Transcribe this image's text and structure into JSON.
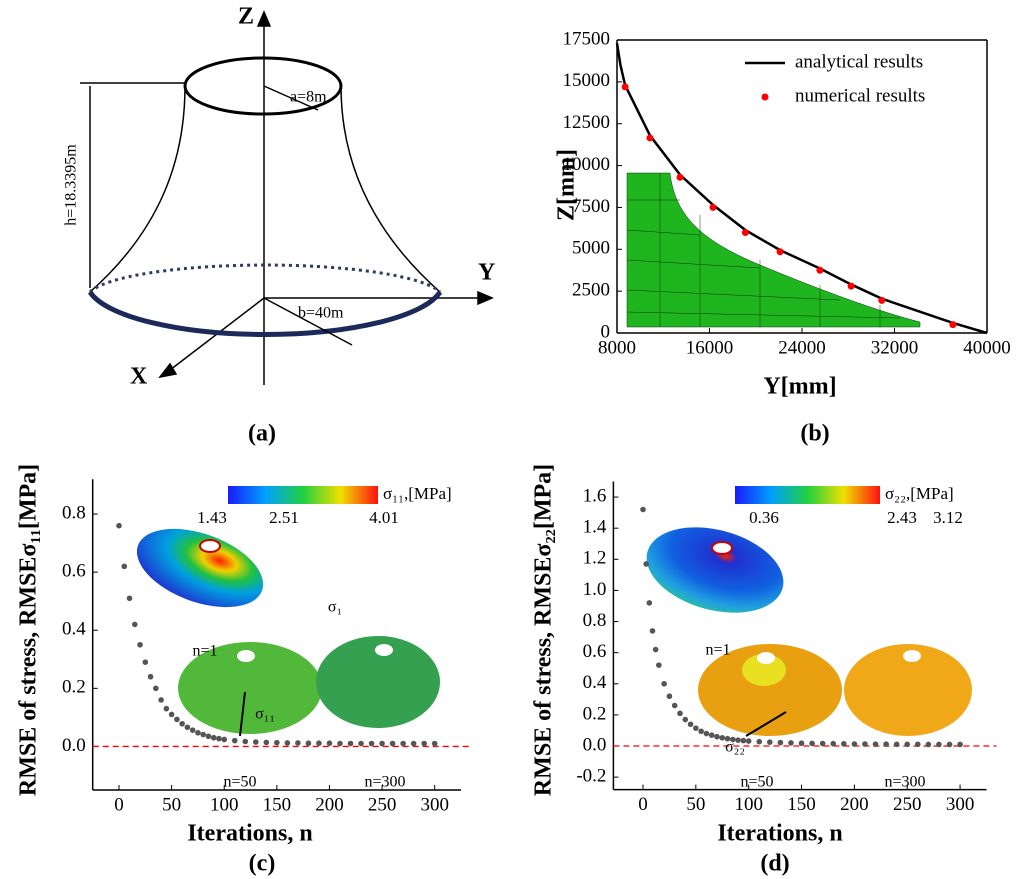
{
  "diagram": {
    "axis_labels": [
      "Z",
      "Y",
      "X"
    ],
    "dimensions": [
      "a=8m",
      "h=18.3395m",
      "b=40m"
    ],
    "panel_label": "(a)"
  },
  "chart_data": [
    {
      "type": "line",
      "panel_label": "(b)",
      "xlabel": "Y[mm]",
      "ylabel": "Z[mm]",
      "xlim": [
        8000,
        40000
      ],
      "xticks": [
        8000,
        16000,
        24000,
        32000,
        40000
      ],
      "ylim": [
        0,
        17500
      ],
      "yticks": [
        0,
        2500,
        5000,
        7500,
        10000,
        12500,
        15000,
        17500
      ],
      "frame": true,
      "legend": "upper right",
      "series": [
        {
          "name": "analytical results",
          "color": "#000000",
          "mode": "line",
          "x": [
            8000,
            8300,
            8700,
            10850,
            13450,
            16300,
            19100,
            22100,
            25550,
            28250,
            30900,
            37050,
            40000
          ],
          "values": [
            17300,
            16000,
            14800,
            11800,
            9450,
            7650,
            6150,
            4950,
            3850,
            2900,
            2050,
            600,
            0
          ]
        },
        {
          "name": "numerical results",
          "color": "#ff0000",
          "mode": "markers",
          "x": [
            8700,
            10850,
            13450,
            16300,
            19100,
            22100,
            25550,
            28250,
            30900,
            37050
          ],
          "values": [
            14700,
            11650,
            9300,
            7500,
            6000,
            4850,
            3750,
            2800,
            1950,
            500
          ]
        }
      ]
    },
    {
      "type": "scatter",
      "panel_label": "(c)",
      "xlabel": "Iterations, n",
      "ylabel": "RMSE of stress, RMSEσ₁₁[MPa]",
      "xlim": [
        -25,
        325
      ],
      "xticks": [
        0,
        50,
        100,
        150,
        200,
        250,
        300
      ],
      "ylim": [
        -0.15,
        0.92
      ],
      "yticks": [
        {
          "value": 0,
          "label": "0.0"
        },
        0.2,
        0.4,
        0.6,
        0.8
      ],
      "color": "#555555",
      "refline": {
        "value": 0,
        "color": "#ff0000"
      },
      "colorbar": {
        "label": "σ₁₁,[MPa]",
        "lim": [
          1.25,
          4.25
        ],
        "ticks": [
          1.43,
          2.51,
          4.01
        ]
      },
      "annotations": [
        "n=1",
        "n=50",
        "n=300",
        "σ₁",
        "σ₁₁"
      ],
      "x": [
        0,
        5,
        10,
        15,
        20,
        25,
        30,
        35,
        40,
        45,
        50,
        55,
        60,
        65,
        70,
        75,
        80,
        85,
        90,
        95,
        100,
        110,
        120,
        130,
        140,
        150,
        160,
        170,
        180,
        190,
        200,
        210,
        220,
        230,
        240,
        250,
        260,
        270,
        280,
        290,
        300
      ],
      "values": [
        0.76,
        0.62,
        0.51,
        0.42,
        0.35,
        0.29,
        0.24,
        0.2,
        0.16,
        0.13,
        0.11,
        0.093,
        0.078,
        0.066,
        0.056,
        0.047,
        0.041,
        0.035,
        0.03,
        0.027,
        0.024,
        0.02,
        0.017,
        0.015,
        0.014,
        0.013,
        0.012,
        0.012,
        0.011,
        0.011,
        0.011,
        0.01,
        0.01,
        0.01,
        0.01,
        0.01,
        0.01,
        0.01,
        0.01,
        0.01,
        0.01
      ]
    },
    {
      "type": "scatter",
      "panel_label": "(d)",
      "xlabel": "Iterations, n",
      "ylabel": "RMSE of stress, RMSEσ₂₂[MPa]",
      "xlim": [
        -28,
        325
      ],
      "xticks": [
        0,
        50,
        100,
        150,
        200,
        250,
        300
      ],
      "ylim": [
        -0.28,
        1.7
      ],
      "yticks": [
        -0.2,
        {
          "value": 0,
          "label": "0.0"
        },
        0.2,
        0.4,
        0.6,
        0.8,
        {
          "value": 1,
          "label": "1.0"
        },
        1.2,
        1.4,
        1.6
      ],
      "color": "#555555",
      "refline": {
        "value": 0,
        "color": "#ff0000"
      },
      "colorbar": {
        "label": "σ₂₂,[MPa]",
        "lim": [
          0,
          3.3
        ],
        "ticks": [
          0.36,
          2.43,
          3.12
        ]
      },
      "annotations": [
        "n=1",
        "n=50",
        "n=300",
        "σ₂₂"
      ],
      "x": [
        0,
        3,
        6,
        9,
        12,
        15,
        20,
        25,
        30,
        35,
        40,
        45,
        50,
        55,
        60,
        65,
        70,
        75,
        80,
        85,
        90,
        95,
        100,
        110,
        120,
        130,
        140,
        150,
        160,
        170,
        180,
        190,
        200,
        210,
        220,
        230,
        240,
        250,
        260,
        270,
        280,
        290,
        300
      ],
      "values": [
        1.52,
        1.17,
        0.92,
        0.74,
        0.62,
        0.52,
        0.4,
        0.32,
        0.26,
        0.21,
        0.17,
        0.14,
        0.115,
        0.095,
        0.08,
        0.07,
        0.06,
        0.053,
        0.047,
        0.042,
        0.038,
        0.035,
        0.032,
        0.028,
        0.025,
        0.022,
        0.02,
        0.018,
        0.017,
        0.016,
        0.015,
        0.014,
        0.013,
        0.013,
        0.012,
        0.012,
        0.011,
        0.011,
        0.011,
        0.01,
        0.01,
        0.01,
        0.01
      ]
    }
  ]
}
